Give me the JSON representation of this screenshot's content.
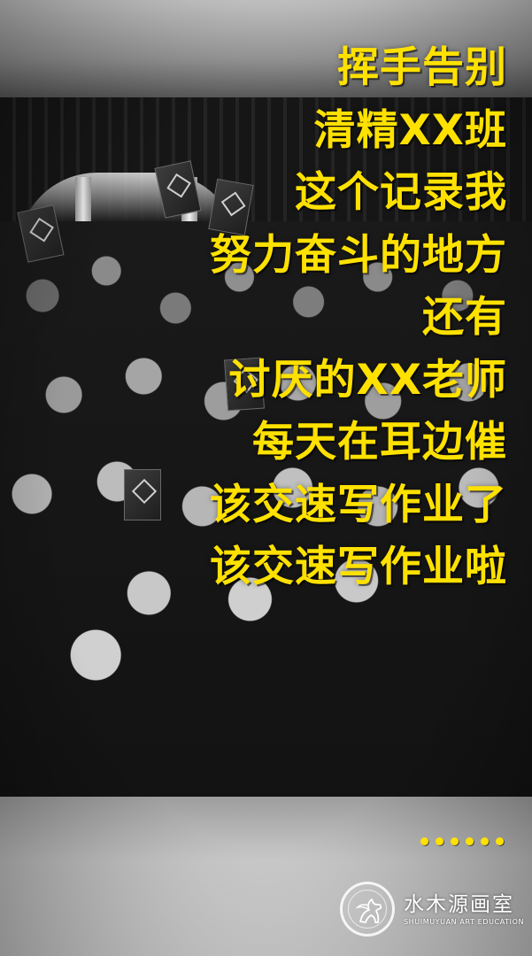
{
  "colors": {
    "caption_text": "#FFE100",
    "dot_color": "#FFE100"
  },
  "photo": {
    "icon": "group-photo-image"
  },
  "captions": [
    "挥手告别",
    "清精XX班",
    "这个记录我",
    "努力奋斗的地方",
    "还有",
    "讨厌的XX老师",
    "每天在耳边催",
    "该交速写作业了",
    "该交速写作业啦"
  ],
  "ellipsis": {
    "count": 6,
    "icon": "ellipsis-dots"
  },
  "brand": {
    "name": "水木源画室",
    "english": "SHUIMUYUAN ART EDUCATION",
    "icon": "pegasus-seal-logo"
  }
}
